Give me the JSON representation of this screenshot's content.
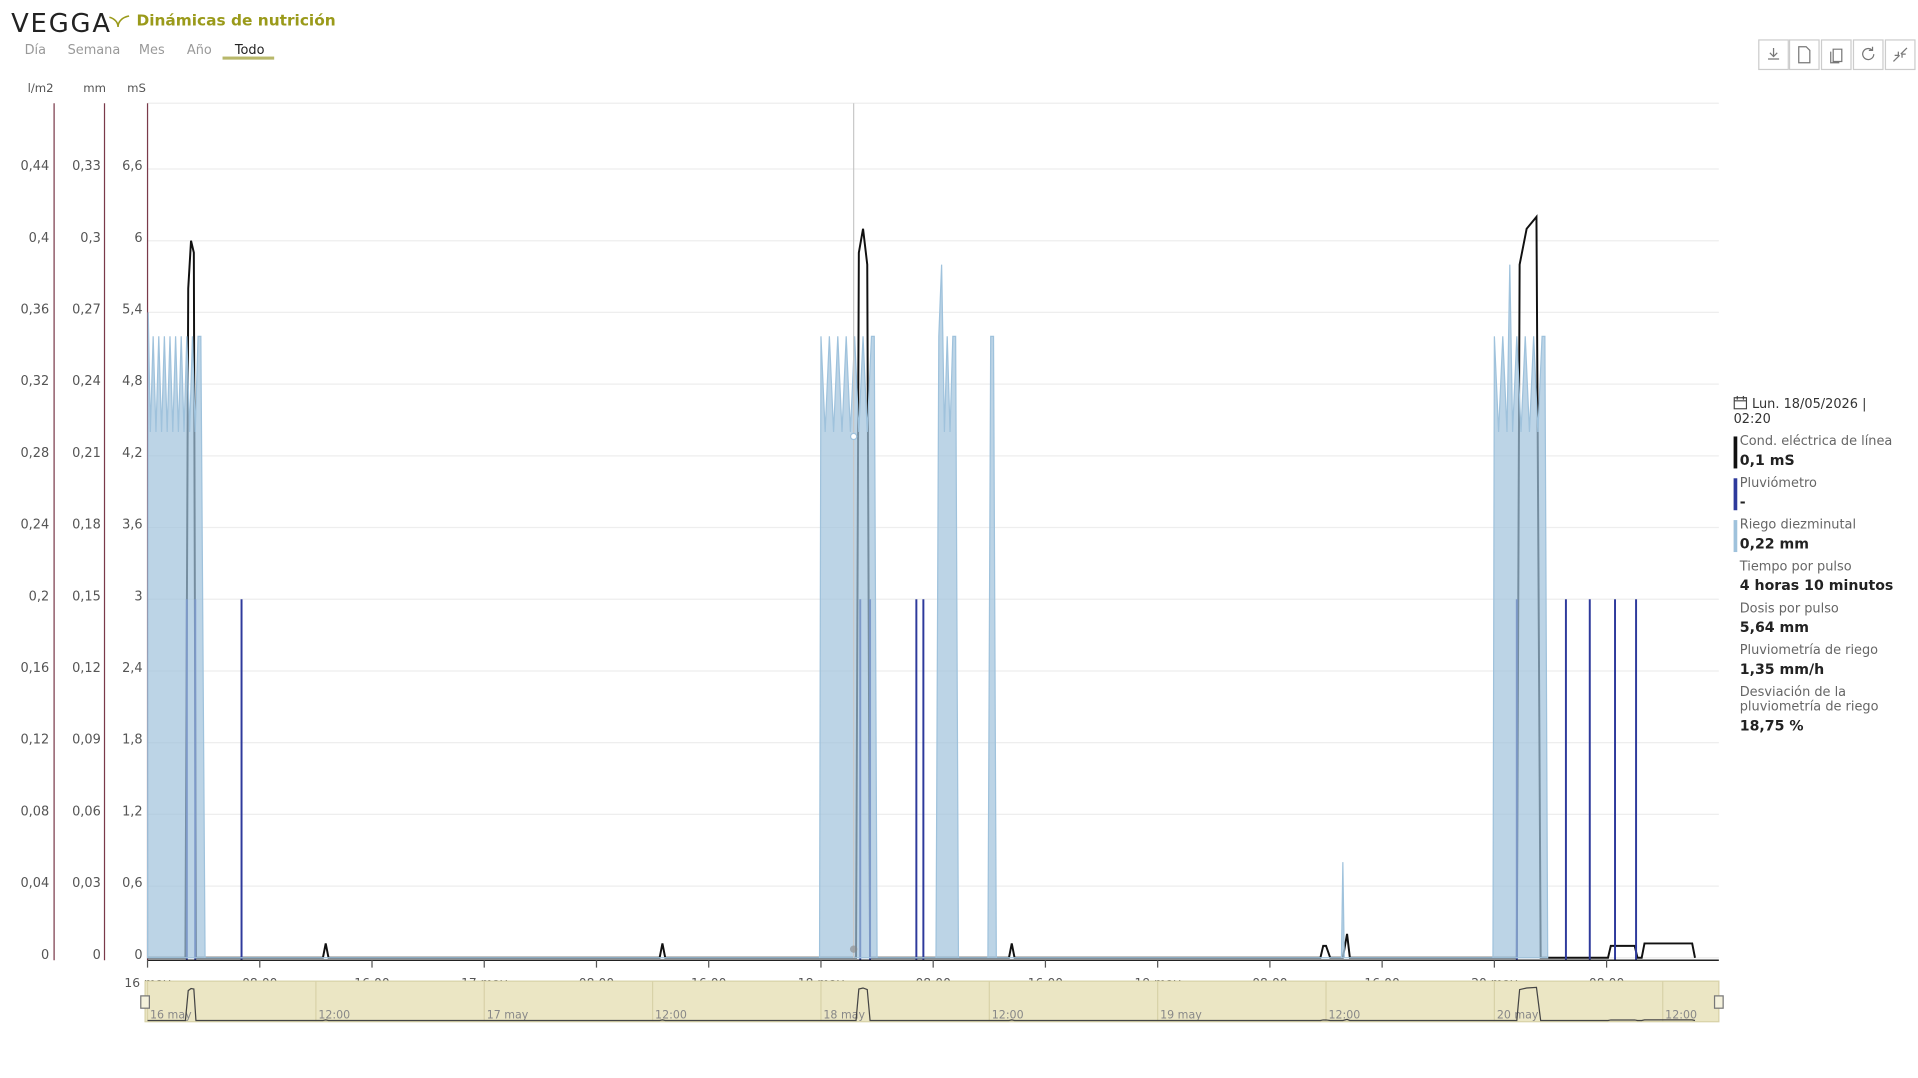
{
  "header": {
    "logo": "VEGGA",
    "title": "Dinámicas de nutrición"
  },
  "tabs": [
    "Día",
    "Semana",
    "Mes",
    "Año",
    "Todo"
  ],
  "active_tab": 4,
  "chart_data": {
    "type": "line",
    "xlim": [
      0,
      112
    ],
    "xticks": [
      {
        "value": 0,
        "label": "16 may"
      },
      {
        "value": 8,
        "label": "08:00"
      },
      {
        "value": 16,
        "label": "16:00"
      },
      {
        "value": 24,
        "label": "17 may"
      },
      {
        "value": 32,
        "label": "08:00"
      },
      {
        "value": 40,
        "label": "16:00"
      },
      {
        "value": 48,
        "label": "18 may"
      },
      {
        "value": 56,
        "label": "08:00"
      },
      {
        "value": 64,
        "label": "16:00"
      },
      {
        "value": 72,
        "label": "19 may"
      },
      {
        "value": 80,
        "label": "08:00"
      },
      {
        "value": 88,
        "label": "16:00"
      },
      {
        "value": 96,
        "label": "20 may"
      },
      {
        "value": 104,
        "label": "08:00"
      }
    ],
    "navigator_ticks": [
      {
        "value": 0,
        "label": "16 may"
      },
      {
        "value": 12,
        "label": "12:00"
      },
      {
        "value": 24,
        "label": "17 may"
      },
      {
        "value": 36,
        "label": "12:00"
      },
      {
        "value": 48,
        "label": "18 may"
      },
      {
        "value": 60,
        "label": "12:00"
      },
      {
        "value": 72,
        "label": "19 may"
      },
      {
        "value": 84,
        "label": "12:00"
      },
      {
        "value": 96,
        "label": "20 may"
      },
      {
        "value": 108,
        "label": "12:00"
      }
    ],
    "crosshair_x": 50.33,
    "grid": true,
    "y_axes": [
      {
        "label": "l/m2",
        "lim": [
          0,
          0.4767
        ],
        "ticks": [
          0,
          {
            "value": 0.04,
            "label": "0,04"
          },
          {
            "value": 0.08,
            "label": "0,08"
          },
          {
            "value": 0.12,
            "label": "0,12"
          },
          {
            "value": 0.16,
            "label": "0,16"
          },
          {
            "value": 0.2,
            "label": "0,2"
          },
          {
            "value": 0.24,
            "label": "0,24"
          },
          {
            "value": 0.28,
            "label": "0,28"
          },
          {
            "value": 0.32,
            "label": "0,32"
          },
          {
            "value": 0.36,
            "label": "0,36"
          },
          {
            "value": 0.4,
            "label": "0,4"
          },
          {
            "value": 0.44,
            "label": "0,44"
          }
        ]
      },
      {
        "label": "mm",
        "lim": [
          0,
          0.3575
        ],
        "ticks": [
          0,
          {
            "value": 0.03,
            "label": "0,03"
          },
          {
            "value": 0.06,
            "label": "0,06"
          },
          {
            "value": 0.09,
            "label": "0,09"
          },
          {
            "value": 0.12,
            "label": "0,12"
          },
          {
            "value": 0.15,
            "label": "0,15"
          },
          {
            "value": 0.18,
            "label": "0,18"
          },
          {
            "value": 0.21,
            "label": "0,21"
          },
          {
            "value": 0.24,
            "label": "0,24"
          },
          {
            "value": 0.27,
            "label": "0,27"
          },
          {
            "value": 0.3,
            "label": "0,3"
          },
          {
            "value": 0.33,
            "label": "0,33"
          }
        ]
      },
      {
        "label": "mS",
        "lim": [
          0,
          7.15
        ],
        "ticks": [
          0,
          {
            "value": 0.6,
            "label": "0,6"
          },
          {
            "value": 1.2,
            "label": "1,2"
          },
          {
            "value": 1.8,
            "label": "1,8"
          },
          {
            "value": 2.4,
            "label": "2,4"
          },
          3,
          {
            "value": 3.6,
            "label": "3,6"
          },
          {
            "value": 4.2,
            "label": "4,2"
          },
          {
            "value": 4.8,
            "label": "4,8"
          },
          {
            "value": 5.4,
            "label": "5,4"
          },
          6,
          {
            "value": 6.6,
            "label": "6,6"
          }
        ]
      }
    ],
    "series": [
      {
        "name": "Cond. eléctrica de línea",
        "type": "line",
        "axis": 2,
        "color": "#111111",
        "x": [
          0,
          2.7,
          2.9,
          3.1,
          3.3,
          3.45,
          12.5,
          12.7,
          12.9,
          36.5,
          36.7,
          36.9,
          50.5,
          50.7,
          51.0,
          51.3,
          51.5,
          61.4,
          61.6,
          61.8,
          83.6,
          83.8,
          84.0,
          84.3,
          85.2,
          85.5,
          85.7,
          97.6,
          97.8,
          98.3,
          99.0,
          99.3,
          104.1,
          104.3,
          106.0,
          106.2,
          106.5,
          106.7,
          110.1,
          110.3
        ],
        "values": [
          0,
          0,
          5.6,
          6.0,
          5.9,
          0,
          0,
          0.12,
          0,
          0,
          0.12,
          0,
          0,
          5.9,
          6.1,
          5.8,
          0,
          0,
          0.12,
          0,
          0,
          0.1,
          0.1,
          0,
          0,
          0.2,
          0,
          0,
          5.8,
          6.1,
          6.2,
          0,
          0,
          0.1,
          0.1,
          0,
          0,
          0.12,
          0.12,
          0
        ]
      },
      {
        "name": "Pluviómetro",
        "type": "bar",
        "axis": 0,
        "color": "#2e3a9c",
        "x": [
          2.8,
          3.4,
          6.7,
          50.8,
          51.5,
          54.8,
          55.3,
          97.6,
          101.1,
          102.8,
          104.6,
          106.1
        ],
        "values": [
          0.2,
          0.2,
          0.2,
          0.2,
          0.2,
          0.2,
          0.2,
          0.2,
          0.2,
          0.2,
          0.2,
          0.2
        ]
      },
      {
        "name": "Riego diezminutal",
        "type": "area",
        "axis": 1,
        "color": "#9fc2dc",
        "x": [
          0,
          0.05,
          0.2,
          0.4,
          0.6,
          0.8,
          1.0,
          1.2,
          1.4,
          1.6,
          1.8,
          2.0,
          2.2,
          2.4,
          2.6,
          2.8,
          3.0,
          3.2,
          3.4,
          3.6,
          3.8,
          4.1,
          47.9,
          48.0,
          48.3,
          48.6,
          48.9,
          49.2,
          49.5,
          49.8,
          50.1,
          50.4,
          50.7,
          51.0,
          51.3,
          51.6,
          51.8,
          52.0,
          56.2,
          56.4,
          56.6,
          56.8,
          57.0,
          57.2,
          57.4,
          57.6,
          57.8,
          59.9,
          60.1,
          60.3,
          60.5,
          85.1,
          85.2,
          85.3,
          95.9,
          96.0,
          96.3,
          96.6,
          96.9,
          97.1,
          97.3,
          97.6,
          97.9,
          98.2,
          98.5,
          98.8,
          99.1,
          99.4,
          99.6,
          99.8
        ],
        "values": [
          0,
          0.27,
          0.22,
          0.26,
          0.22,
          0.26,
          0.22,
          0.26,
          0.22,
          0.26,
          0.22,
          0.26,
          0.22,
          0.26,
          0.22,
          0.26,
          0.22,
          0.26,
          0.22,
          0.26,
          0.26,
          0,
          0,
          0.26,
          0.22,
          0.26,
          0.22,
          0.26,
          0.22,
          0.26,
          0.22,
          0.26,
          0.22,
          0.26,
          0.22,
          0.26,
          0.26,
          0,
          0,
          0.26,
          0.29,
          0.22,
          0.26,
          0.22,
          0.26,
          0.26,
          0,
          0,
          0.26,
          0.26,
          0,
          0,
          0.04,
          0,
          0,
          0.26,
          0.22,
          0.26,
          0.22,
          0.29,
          0.22,
          0.26,
          0.22,
          0.26,
          0.22,
          0.26,
          0.22,
          0.26,
          0.26,
          0
        ]
      }
    ]
  },
  "tooltip": {
    "date": "Lun. 18/05/2026 | 02:20",
    "series_values": [
      "0,1 mS",
      "-",
      "0,22 mm"
    ],
    "details": [
      {
        "label": "Tiempo por pulso",
        "value": "4 horas 10 minutos"
      },
      {
        "label": "Dosis por pulso",
        "value": "5,64 mm"
      },
      {
        "label": "Pluviometría de riego",
        "value": "1,35 mm/h"
      },
      {
        "label": "Desviación de la pluviometría de riego",
        "value": "18,75 %"
      }
    ]
  }
}
